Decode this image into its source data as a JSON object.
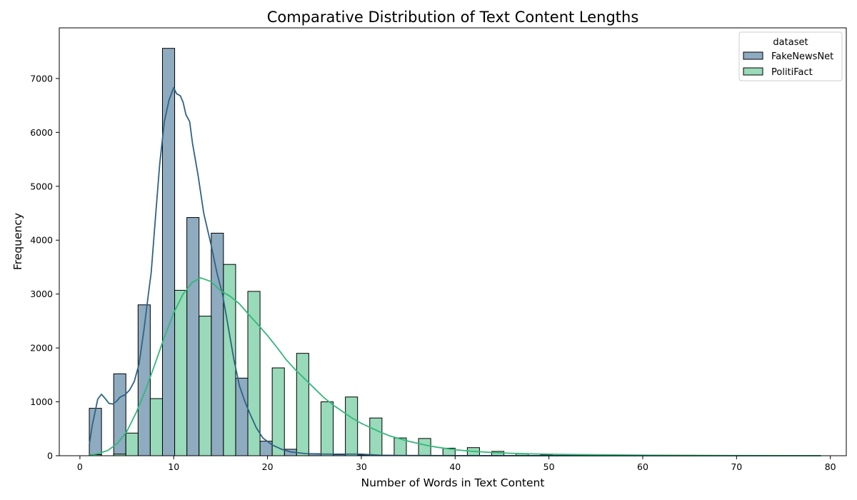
{
  "chart_data": {
    "type": "bar",
    "title": "Comparative Distribution of Text Content Lengths",
    "xlabel": "Number of Words in Text Content",
    "ylabel": "Frequency",
    "xlim": [
      -2.2,
      81.7
    ],
    "ylim": [
      0,
      7940
    ],
    "xticks": [
      0,
      10,
      20,
      30,
      40,
      50,
      60,
      70,
      80
    ],
    "yticks": [
      0,
      1000,
      2000,
      3000,
      4000,
      5000,
      6000,
      7000
    ],
    "grid": false,
    "legend": {
      "title": "dataset",
      "position": "top-right"
    },
    "bin_width": 1.3,
    "series": [
      {
        "name": "FakeNewsNet",
        "color": "#8eabc0",
        "line_color": "#2e6384",
        "bins": [
          {
            "x0": 1.0,
            "value": 880
          },
          {
            "x0": 3.6,
            "value": 1520
          },
          {
            "x0": 6.2,
            "value": 2800
          },
          {
            "x0": 8.8,
            "value": 7560
          },
          {
            "x0": 11.4,
            "value": 4420
          },
          {
            "x0": 14.0,
            "value": 4130
          },
          {
            "x0": 16.6,
            "value": 1440
          },
          {
            "x0": 19.2,
            "value": 270
          },
          {
            "x0": 21.8,
            "value": 120
          },
          {
            "x0": 24.4,
            "value": 40
          },
          {
            "x0": 27.0,
            "value": 20
          },
          {
            "x0": 29.6,
            "value": 15
          },
          {
            "x0": 32.2,
            "value": 8
          },
          {
            "x0": 34.8,
            "value": 5
          },
          {
            "x0": 37.4,
            "value": 3
          }
        ],
        "kde": [
          [
            1.0,
            200
          ],
          [
            1.3,
            550
          ],
          [
            1.6,
            800
          ],
          [
            1.9,
            1050
          ],
          [
            2.3,
            1140
          ],
          [
            2.7,
            1060
          ],
          [
            3.1,
            970
          ],
          [
            3.5,
            960
          ],
          [
            3.9,
            1010
          ],
          [
            4.3,
            1090
          ],
          [
            4.8,
            1130
          ],
          [
            5.3,
            1220
          ],
          [
            5.8,
            1380
          ],
          [
            6.3,
            1700
          ],
          [
            6.8,
            2300
          ],
          [
            7.3,
            3000
          ],
          [
            7.6,
            3400
          ],
          [
            8.0,
            4300
          ],
          [
            8.5,
            5400
          ],
          [
            9.0,
            6200
          ],
          [
            9.5,
            6600
          ],
          [
            10.0,
            6830
          ],
          [
            10.3,
            6720
          ],
          [
            10.7,
            6680
          ],
          [
            11.0,
            6560
          ],
          [
            11.3,
            6330
          ],
          [
            11.7,
            6200
          ],
          [
            12.0,
            5800
          ],
          [
            12.6,
            5200
          ],
          [
            13.2,
            4500
          ],
          [
            13.6,
            4200
          ],
          [
            14.0,
            3900
          ],
          [
            14.6,
            3400
          ],
          [
            15.2,
            3000
          ],
          [
            15.8,
            2400
          ],
          [
            16.4,
            1800
          ],
          [
            17.0,
            1300
          ],
          [
            17.6,
            1000
          ],
          [
            18.2,
            750
          ],
          [
            18.8,
            520
          ],
          [
            19.5,
            330
          ],
          [
            20.5,
            200
          ],
          [
            21.5,
            120
          ],
          [
            22.5,
            70
          ],
          [
            24.0,
            40
          ],
          [
            26.0,
            30
          ],
          [
            28.0,
            30
          ],
          [
            30.0,
            30
          ],
          [
            31.0,
            20
          ],
          [
            32.0,
            10
          ],
          [
            34.0,
            5
          ],
          [
            40.0,
            2
          ],
          [
            50.0,
            1
          ],
          [
            79.0,
            0
          ]
        ]
      },
      {
        "name": "PolitiFact",
        "color": "#98dab9",
        "line_color": "#35b779",
        "bins": [
          {
            "x0": 1.0,
            "value": 20
          },
          {
            "x0": 3.6,
            "value": 30
          },
          {
            "x0": 4.9,
            "value": 420
          },
          {
            "x0": 7.5,
            "value": 1060
          },
          {
            "x0": 10.1,
            "value": 3070
          },
          {
            "x0": 12.7,
            "value": 2590
          },
          {
            "x0": 15.3,
            "value": 3550
          },
          {
            "x0": 17.9,
            "value": 3050
          },
          {
            "x0": 20.5,
            "value": 1630
          },
          {
            "x0": 23.1,
            "value": 1900
          },
          {
            "x0": 25.7,
            "value": 1000
          },
          {
            "x0": 28.3,
            "value": 1090
          },
          {
            "x0": 30.9,
            "value": 700
          },
          {
            "x0": 33.5,
            "value": 330
          },
          {
            "x0": 36.1,
            "value": 320
          },
          {
            "x0": 38.7,
            "value": 140
          },
          {
            "x0": 41.3,
            "value": 150
          },
          {
            "x0": 43.9,
            "value": 80
          },
          {
            "x0": 46.5,
            "value": 40
          },
          {
            "x0": 49.1,
            "value": 20
          },
          {
            "x0": 51.7,
            "value": 10
          },
          {
            "x0": 54.3,
            "value": 8
          },
          {
            "x0": 56.9,
            "value": 5
          },
          {
            "x0": 59.5,
            "value": 3
          },
          {
            "x0": 62.1,
            "value": 2
          }
        ],
        "kde": [
          [
            1.0,
            10
          ],
          [
            2.0,
            40
          ],
          [
            3.0,
            100
          ],
          [
            4.0,
            230
          ],
          [
            5.0,
            450
          ],
          [
            6.0,
            800
          ],
          [
            7.0,
            1220
          ],
          [
            8.0,
            1700
          ],
          [
            9.0,
            2200
          ],
          [
            10.0,
            2650
          ],
          [
            11.0,
            3000
          ],
          [
            12.0,
            3220
          ],
          [
            12.9,
            3300
          ],
          [
            14.0,
            3230
          ],
          [
            15.0,
            3060
          ],
          [
            16.0,
            2960
          ],
          [
            17.0,
            2820
          ],
          [
            18.0,
            2620
          ],
          [
            19.0,
            2430
          ],
          [
            20.0,
            2230
          ],
          [
            21.0,
            2010
          ],
          [
            22.0,
            1780
          ],
          [
            23.0,
            1590
          ],
          [
            24.0,
            1420
          ],
          [
            25.0,
            1250
          ],
          [
            26.0,
            1080
          ],
          [
            27.0,
            940
          ],
          [
            28.0,
            820
          ],
          [
            29.0,
            700
          ],
          [
            30.0,
            600
          ],
          [
            31.0,
            520
          ],
          [
            32.0,
            440
          ],
          [
            33.0,
            370
          ],
          [
            34.0,
            320
          ],
          [
            35.0,
            270
          ],
          [
            36.0,
            230
          ],
          [
            37.0,
            190
          ],
          [
            38.0,
            160
          ],
          [
            39.0,
            135
          ],
          [
            40.0,
            110
          ],
          [
            42.0,
            80
          ],
          [
            44.0,
            60
          ],
          [
            46.0,
            45
          ],
          [
            48.0,
            35
          ],
          [
            50.0,
            28
          ],
          [
            53.0,
            22
          ],
          [
            56.0,
            16
          ],
          [
            60.0,
            10
          ],
          [
            65.0,
            6
          ],
          [
            70.0,
            3
          ],
          [
            75.0,
            2
          ],
          [
            79.0,
            0
          ]
        ]
      }
    ]
  }
}
